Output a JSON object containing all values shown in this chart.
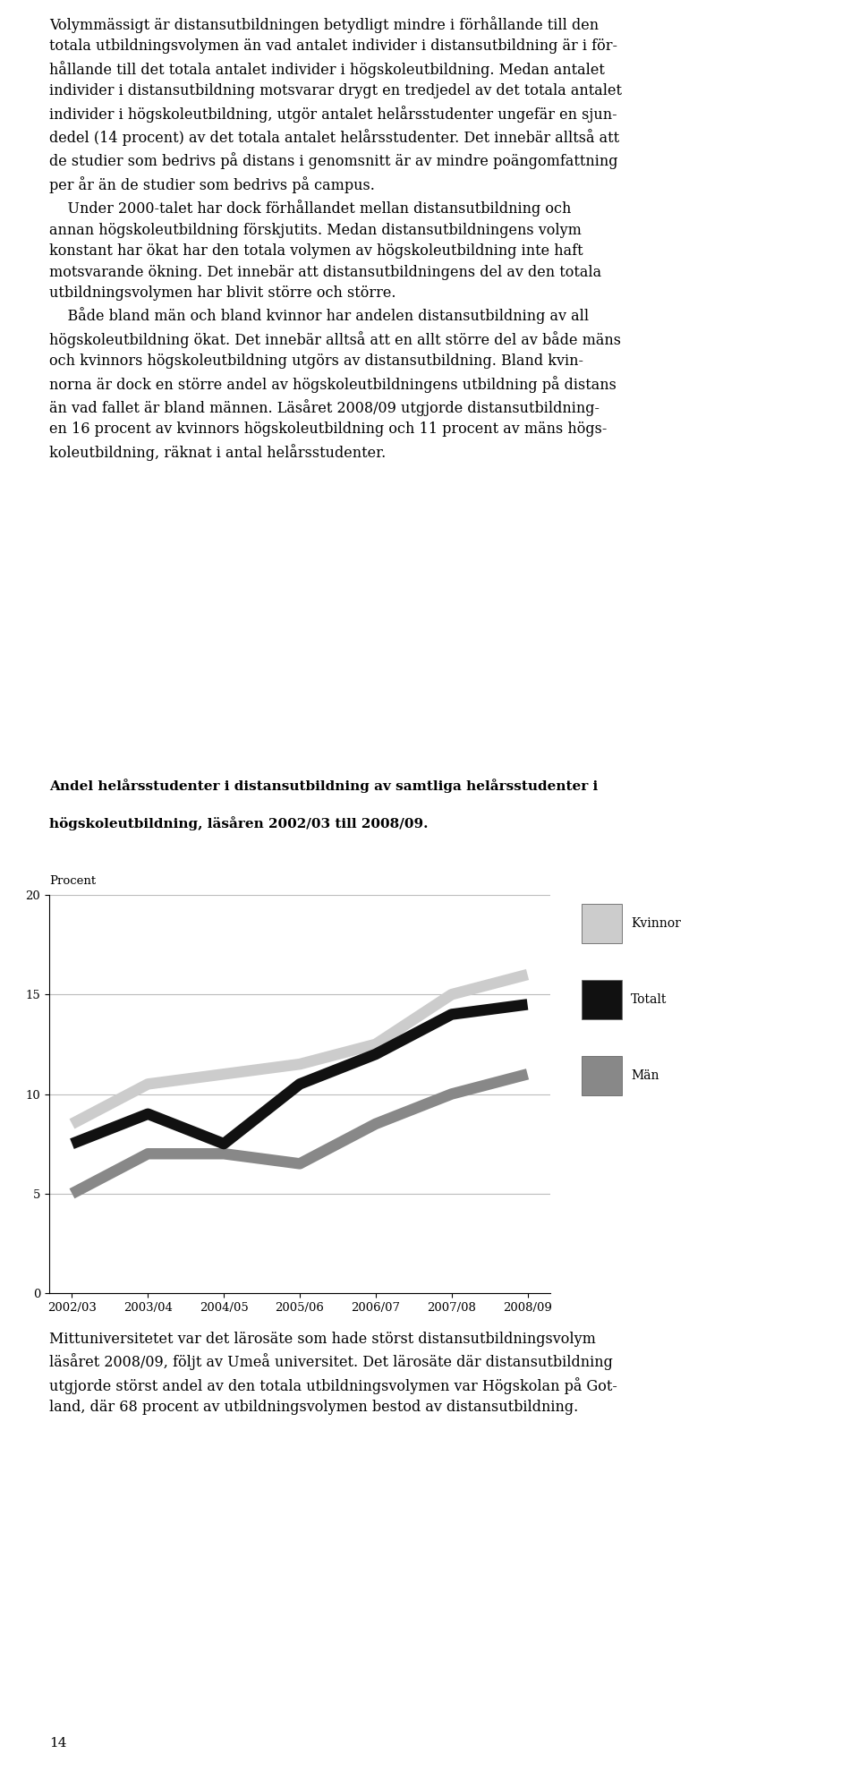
{
  "title_line1": "Andel helårsstudenter i distansutbildning av samtliga helårsstudenter i",
  "title_line2": "högskoleutbildning, läsåren 2002/03 till 2008/09.",
  "ylabel": "Procent",
  "xlabels": [
    "2002/03",
    "2003/04",
    "2004/05",
    "2005/06",
    "2006/07",
    "2007/08",
    "2008/09"
  ],
  "ylim": [
    0,
    20
  ],
  "yticks": [
    0,
    5,
    10,
    15,
    20
  ],
  "kvinnor": [
    8.5,
    10.5,
    11.0,
    11.5,
    12.5,
    15.0,
    16.0
  ],
  "totalt": [
    7.5,
    9.0,
    7.5,
    10.5,
    12.0,
    14.0,
    14.5
  ],
  "man": [
    5.0,
    7.0,
    7.0,
    6.5,
    8.5,
    10.0,
    11.0
  ],
  "color_kvinnor": "#cccccc",
  "color_totalt": "#111111",
  "color_man": "#888888",
  "legend_labels": [
    "Kvinnor",
    "Totalt",
    "Män"
  ],
  "background_color": "#ffffff",
  "text_color": "#000000",
  "page_number": "14",
  "top_text": "Volymmässigt är distansutbildningen betydligt mindre i förhållande till den\ntotala utbildningsvolymen än vad antalet individer i distansutbildning är i för-\nhållande till det totala antalet individer i högskoleutbildning. Medan antalet\nindivider i distansutbildning motsvarar drygt en tredjedel av det totala antalet\nindivider i högskoleutbildning, utgör antalet helårsstudenter ungefär en sjun-\ndedel (14 procent) av det totala antalet helårsstudenter. Det innebär alltså att\nde studier som bedrivs på distans i genomsnitt är av mindre poängomfattning\nper år än de studier som bedrivs på campus.\n    Under 2000-talet har dock förhållandet mellan distansutbildning och\nannan högskoleutbildning förskjutits. Medan distansutbildningens volym\nkonstant har ökat har den totala volymen av högskoleutbildning inte haft\nmotsvarande ökning. Det innebär att distansutbildningens del av den totala\nutbildningsvolymen har blivit större och större.\n    Både bland män och bland kvinnor har andelen distansutbildning av all\nhögskoleutbildning ökat. Det innebär alltså att en allt större del av både mäns\noch kvinnors högskoleutbildning utgörs av distansutbildning. Bland kvin-\nnorna är dock en större andel av högskoleutbildningens utbildning på distans\nän vad fallet är bland männen. Läsåret 2008/09 utgjorde distansutbildning-\nen 16 procent av kvinnors högskoleutbildning och 11 procent av mäns högs-\nkoleutbildning, räknat i antal helårsstudenter.",
  "bottom_text": "Mittuniversitetet var det lärosäte som hade störst distansutbildningsvolym\nläsåret 2008/09, följt av Umeå universitet. Det lärosäte där distansutbildning\nutgjorde störst andel av den totala utbildningsvolymen var Högskolan på Got-\nland, där 68 procent av utbildningsvolymen bestod av distansutbildning.",
  "chart_title_fontsize": 11,
  "text_fontsize": 11.5,
  "tick_fontsize": 9.5,
  "linewidth": 9
}
